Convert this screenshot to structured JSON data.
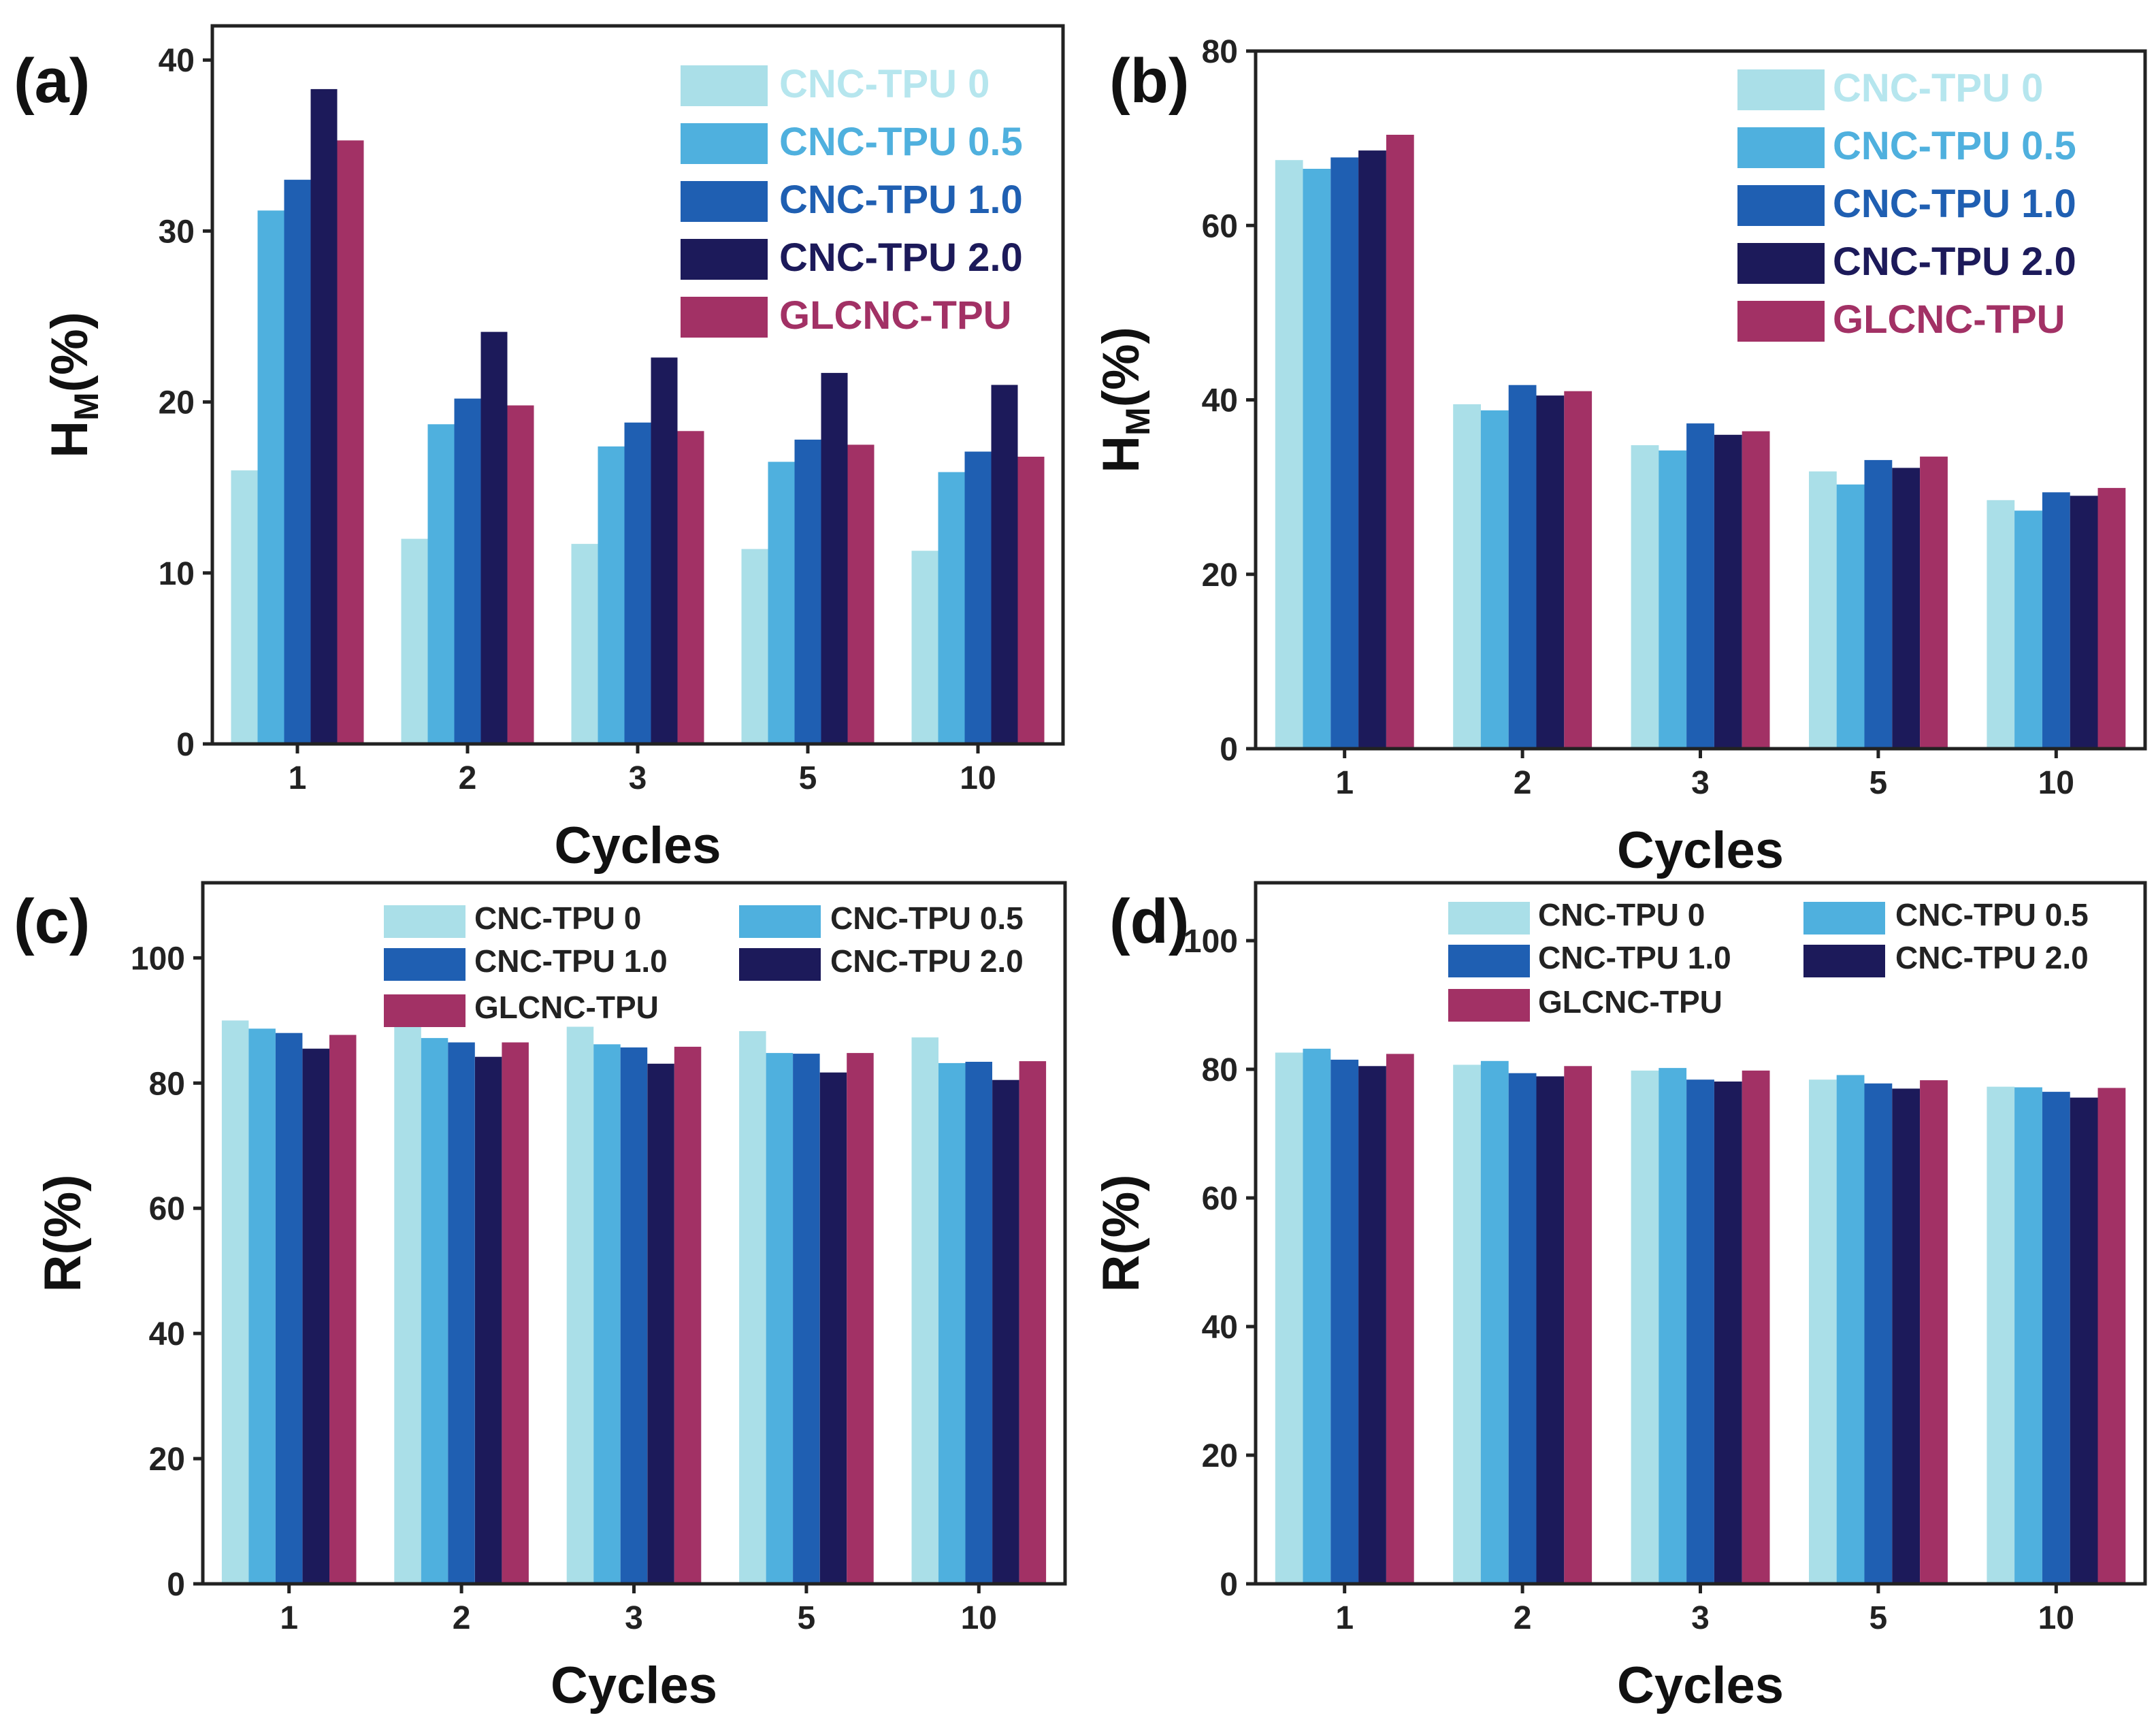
{
  "colors": {
    "CNC-TPU 0": "#aadfe8",
    "CNC-TPU 0.5": "#4fb0de",
    "CNC-TPU 1.0": "#1f5fb2",
    "CNC-TPU 2.0": "#1c1a5a",
    "GLCNC-TPU": "#a23165"
  },
  "legend_text_colors": {
    "CNC-TPU 0": "#b6e6ee",
    "CNC-TPU 0.5": "#4fb0de",
    "CNC-TPU 1.0": "#1f5fb2",
    "CNC-TPU 2.0": "#1c1a5a",
    "GLCNC-TPU": "#a23165"
  },
  "chart_data": [
    {
      "panel": "(a)",
      "type": "bar",
      "title": "",
      "xlabel": "Cycles",
      "ylabel_main": "H",
      "ylabel_sub": "M",
      "ylabel_tail": "(%)",
      "categories": [
        "1",
        "2",
        "3",
        "5",
        "10"
      ],
      "ylim": [
        0,
        42
      ],
      "yticks": [
        "0",
        "10",
        "20",
        "30",
        "40"
      ],
      "legend_position": "top-right",
      "series": [
        {
          "name": "CNC-TPU 0",
          "values": [
            16.0,
            12.0,
            11.7,
            11.4,
            11.3
          ]
        },
        {
          "name": "CNC-TPU 0.5",
          "values": [
            31.2,
            18.7,
            17.4,
            16.5,
            15.9
          ]
        },
        {
          "name": "CNC-TPU 1.0",
          "values": [
            33.0,
            20.2,
            18.8,
            17.8,
            17.1
          ]
        },
        {
          "name": "CNC-TPU 2.0",
          "values": [
            38.3,
            24.1,
            22.6,
            21.7,
            21.0
          ]
        },
        {
          "name": "GLCNC-TPU",
          "values": [
            35.3,
            19.8,
            18.3,
            17.5,
            16.8
          ]
        }
      ]
    },
    {
      "panel": "(b)",
      "type": "bar",
      "title": "",
      "xlabel": "Cycles",
      "ylabel_main": "H",
      "ylabel_sub": "M",
      "ylabel_tail": "(%)",
      "categories": [
        "1",
        "2",
        "3",
        "5",
        "10"
      ],
      "ylim": [
        0,
        80
      ],
      "yticks": [
        "0",
        "20",
        "40",
        "60",
        "80"
      ],
      "legend_position": "top-right",
      "series": [
        {
          "name": "CNC-TPU 0",
          "values": [
            67.5,
            39.5,
            34.8,
            31.8,
            28.5
          ]
        },
        {
          "name": "CNC-TPU 0.5",
          "values": [
            66.5,
            38.8,
            34.2,
            30.3,
            27.3
          ]
        },
        {
          "name": "CNC-TPU 1.0",
          "values": [
            67.8,
            41.7,
            37.3,
            33.1,
            29.4
          ]
        },
        {
          "name": "CNC-TPU 2.0",
          "values": [
            68.6,
            40.5,
            36.0,
            32.2,
            29.0
          ]
        },
        {
          "name": "GLCNC-TPU",
          "values": [
            70.4,
            41.0,
            36.4,
            33.5,
            29.9
          ]
        }
      ]
    },
    {
      "panel": "(c)",
      "type": "bar",
      "title": "",
      "xlabel": "Cycles",
      "ylabel_main": "R(%)",
      "ylabel_sub": "",
      "ylabel_tail": "",
      "categories": [
        "1",
        "2",
        "3",
        "5",
        "10"
      ],
      "ylim": [
        0,
        112
      ],
      "yticks": [
        "0",
        "20",
        "40",
        "60",
        "80",
        "100"
      ],
      "legend_position": "top",
      "series": [
        {
          "name": "CNC-TPU 0",
          "values": [
            90.0,
            89.5,
            89.0,
            88.3,
            87.3
          ]
        },
        {
          "name": "CNC-TPU 0.5",
          "values": [
            88.7,
            87.2,
            86.2,
            84.8,
            83.2
          ]
        },
        {
          "name": "CNC-TPU 1.0",
          "values": [
            88.0,
            86.5,
            85.7,
            84.7,
            83.4
          ]
        },
        {
          "name": "CNC-TPU 2.0",
          "values": [
            85.5,
            84.2,
            83.1,
            81.7,
            80.5
          ]
        },
        {
          "name": "GLCNC-TPU",
          "values": [
            87.7,
            86.5,
            85.8,
            84.8,
            83.5
          ]
        }
      ]
    },
    {
      "panel": "(d)",
      "type": "bar",
      "title": "",
      "xlabel": "Cycles",
      "ylabel_main": "R(%)",
      "ylabel_sub": "",
      "ylabel_tail": "",
      "categories": [
        "1",
        "2",
        "3",
        "5",
        "10"
      ],
      "ylim": [
        0,
        109
      ],
      "yticks": [
        "0",
        "20",
        "40",
        "60",
        "80",
        "100"
      ],
      "legend_position": "top",
      "series": [
        {
          "name": "CNC-TPU 0",
          "values": [
            82.6,
            80.7,
            79.8,
            78.4,
            77.3
          ]
        },
        {
          "name": "CNC-TPU 0.5",
          "values": [
            83.2,
            81.3,
            80.2,
            79.1,
            77.2
          ]
        },
        {
          "name": "CNC-TPU 1.0",
          "values": [
            81.5,
            79.4,
            78.4,
            77.8,
            76.5
          ]
        },
        {
          "name": "CNC-TPU 2.0",
          "values": [
            80.5,
            78.9,
            78.1,
            77.0,
            75.6
          ]
        },
        {
          "name": "GLCNC-TPU",
          "values": [
            82.4,
            80.5,
            79.8,
            78.3,
            77.1
          ]
        }
      ]
    }
  ]
}
